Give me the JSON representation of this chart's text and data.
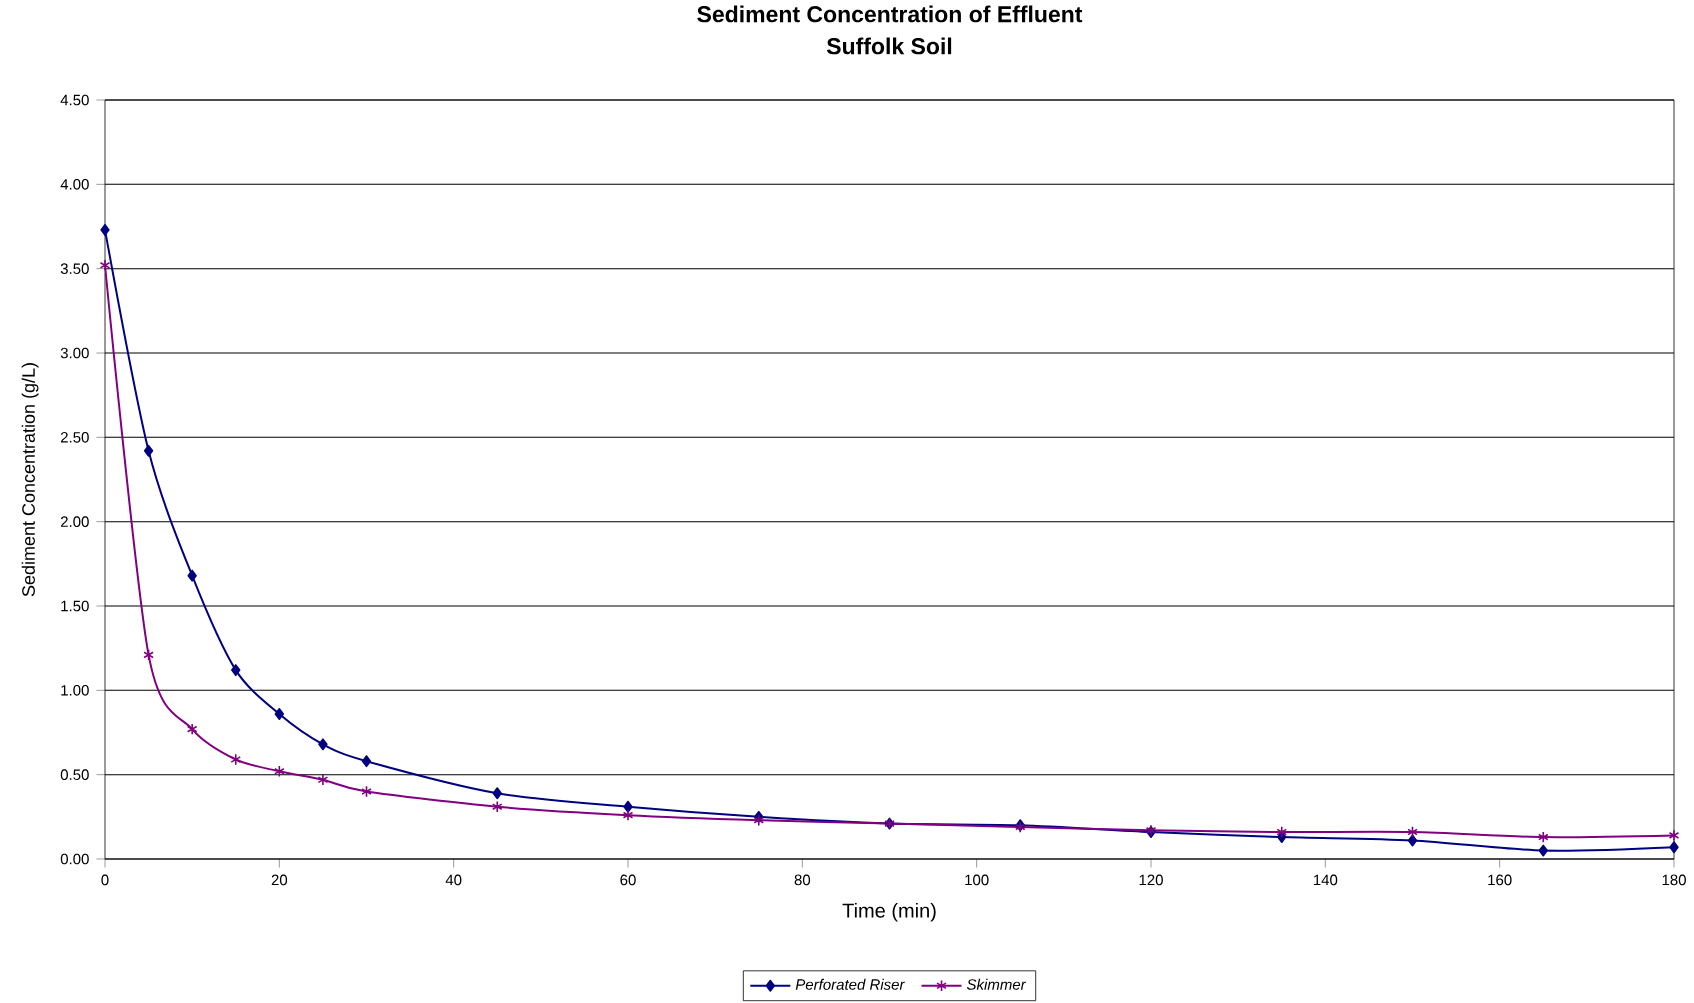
{
  "chart_data": {
    "type": "line",
    "title": "Sediment Concentration of Effluent",
    "subtitle": "Suffolk Soil",
    "xlabel": "Time (min)",
    "ylabel": "Sediment Concentration (g/L)",
    "x": [
      0,
      5,
      10,
      15,
      20,
      25,
      30,
      45,
      60,
      75,
      90,
      105,
      120,
      135,
      150,
      165,
      180
    ],
    "series": [
      {
        "name": "Perforated Riser",
        "color": "#000080",
        "marker": "diamond",
        "values": [
          3.73,
          2.42,
          1.68,
          1.12,
          0.86,
          0.68,
          0.58,
          0.39,
          0.31,
          0.25,
          0.21,
          0.2,
          0.16,
          0.13,
          0.11,
          0.05,
          0.07
        ]
      },
      {
        "name": "Skimmer",
        "color": "#800080",
        "marker": "cross",
        "values": [
          3.52,
          1.21,
          0.77,
          0.59,
          0.52,
          0.47,
          0.4,
          0.31,
          0.26,
          0.23,
          0.21,
          0.19,
          0.17,
          0.16,
          0.16,
          0.13,
          0.14
        ]
      }
    ],
    "xlim": [
      0,
      180
    ],
    "xticks": [
      0,
      20,
      40,
      60,
      80,
      100,
      120,
      140,
      160,
      180
    ],
    "ylim": [
      0,
      4.5
    ],
    "yticks": [
      {
        "value": 0,
        "label": "0.00"
      },
      {
        "value": 0.5,
        "label": "0.50"
      },
      {
        "value": 1,
        "label": "1.00"
      },
      {
        "value": 1.5,
        "label": "1.50"
      },
      {
        "value": 2,
        "label": "2.00"
      },
      {
        "value": 2.5,
        "label": "2.50"
      },
      {
        "value": 3,
        "label": "3.00"
      },
      {
        "value": 3.5,
        "label": "3.50"
      },
      {
        "value": 4,
        "label": "4.00"
      },
      {
        "value": 4.5,
        "label": "4.50"
      }
    ],
    "grid": "y",
    "legend": "bottom",
    "line_style": "solid"
  }
}
